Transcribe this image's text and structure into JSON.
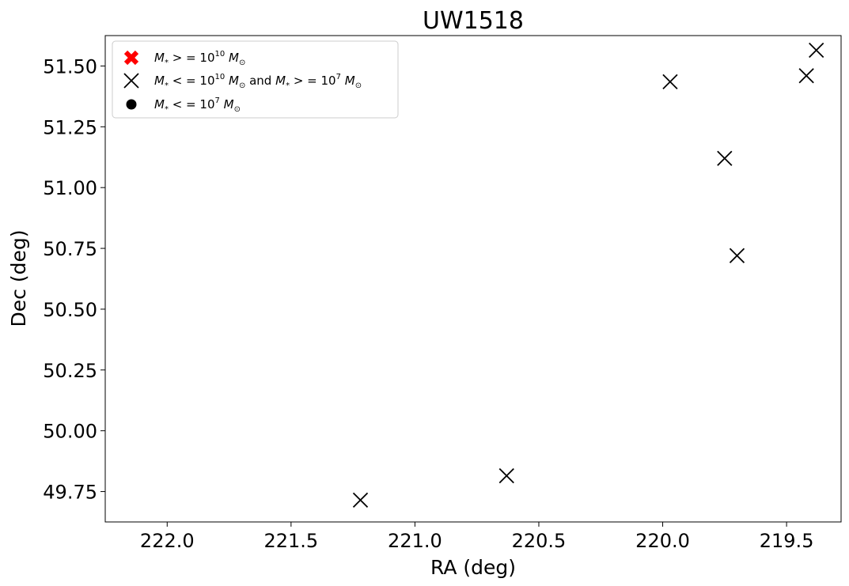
{
  "chart_data": {
    "type": "scatter",
    "title": "UW1518",
    "xlabel": "RA (deg)",
    "ylabel": "Dec (deg)",
    "xlim": [
      222.25,
      219.28
    ],
    "ylim": [
      49.625,
      51.625
    ],
    "x_inverted": true,
    "grid": false,
    "legend_placement": "top-left",
    "x_ticks": [
      222.0,
      221.5,
      221.0,
      220.5,
      220.0,
      219.5
    ],
    "x_tick_labels": [
      "222.0",
      "221.5",
      "221.0",
      "220.5",
      "220.0",
      "219.5"
    ],
    "y_ticks": [
      49.75,
      50.0,
      50.25,
      50.5,
      50.75,
      51.0,
      51.25,
      51.5
    ],
    "y_tick_labels": [
      "49.75",
      "50.00",
      "50.25",
      "50.50",
      "50.75",
      "51.00",
      "51.25",
      "51.50"
    ],
    "series": [
      {
        "name": "M* >= 10^10 M☉",
        "marker": "bold-x",
        "color": "#ff0000",
        "points": []
      },
      {
        "name": "10^7 M☉ <= M* <= 10^10 M☉",
        "marker": "x",
        "color": "#000000",
        "points": [
          {
            "x": 221.22,
            "y": 49.715
          },
          {
            "x": 220.63,
            "y": 49.815
          },
          {
            "x": 219.97,
            "y": 51.435
          },
          {
            "x": 219.75,
            "y": 51.12
          },
          {
            "x": 219.7,
            "y": 50.72
          },
          {
            "x": 219.42,
            "y": 51.46
          },
          {
            "x": 219.38,
            "y": 51.565
          }
        ]
      },
      {
        "name": "M* <= 10^7 M☉",
        "marker": "circle",
        "color": "#000000",
        "points": []
      }
    ]
  }
}
